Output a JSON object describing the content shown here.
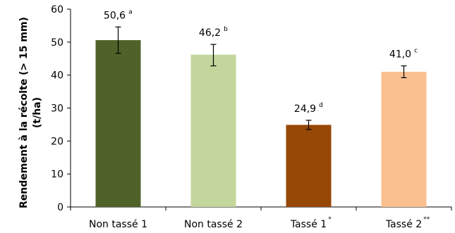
{
  "chart_data": {
    "type": "bar",
    "categories": [
      "Non tassé  1",
      "Non tassé  2",
      "Tassé 1",
      "Tassé 2"
    ],
    "category_marks": [
      "",
      "",
      "*",
      "**"
    ],
    "values": [
      50.6,
      46.2,
      24.9,
      41.0
    ],
    "value_labels": [
      "50,6",
      "46,2",
      "24,9",
      "41,0"
    ],
    "letters": [
      "a",
      "b",
      "d",
      "c"
    ],
    "error_bars": [
      {
        "low": 46.6,
        "high": 54.6
      },
      {
        "low": 42.8,
        "high": 49.3
      },
      {
        "low": 23.5,
        "high": 26.3
      },
      {
        "low": 39.2,
        "high": 42.8
      }
    ],
    "colors": [
      "#4f6228",
      "#c3d69b",
      "#974706",
      "#fac090"
    ],
    "ylabel_line1": "Rendement à la récolte (> 15 mm)",
    "ylabel_line2": "(t/ha)",
    "ylim": [
      0,
      60
    ],
    "yticks": [
      0,
      10,
      20,
      30,
      40,
      50,
      60
    ],
    "grid": false,
    "legend": "none"
  }
}
